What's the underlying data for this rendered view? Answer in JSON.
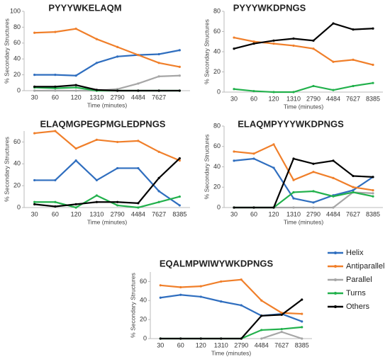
{
  "chart_data": [
    {
      "type": "line",
      "title": "PYYYWKELAQM",
      "ylabel": "% Secondary Structures",
      "xlabel": "Time (minutes)",
      "categories": [
        "30",
        "60",
        "120",
        "1310",
        "2790",
        "4484",
        "7627",
        null
      ],
      "ylim": [
        0,
        100
      ],
      "yticks": [
        0,
        20,
        40,
        60,
        80,
        100
      ],
      "series": [
        {
          "color": "#2f6ebf",
          "values": [
            20,
            20,
            19,
            35,
            43,
            45,
            46,
            51
          ]
        },
        {
          "color": "#f07f2a",
          "values": [
            73,
            74,
            78,
            65,
            55,
            45,
            35,
            30
          ]
        },
        {
          "color": "#a6a6a6",
          "values": [
            0,
            0,
            0,
            0,
            2,
            9,
            18,
            19
          ]
        },
        {
          "color": "#22b14c",
          "values": [
            4,
            3,
            4,
            0,
            0,
            0,
            0,
            0
          ]
        },
        {
          "color": "#000000",
          "values": [
            5,
            5,
            7,
            1,
            0,
            0,
            0,
            0
          ]
        }
      ]
    },
    {
      "type": "line",
      "title": "PYYYWKDPNGS",
      "ylabel": "% Secondary Structures",
      "xlabel": "Time (minutes)",
      "categories": [
        "30",
        "60",
        "120",
        "1310",
        "2790",
        "4484",
        "7627",
        "8385"
      ],
      "ylim": [
        0,
        80
      ],
      "yticks": [
        0,
        20,
        40,
        60,
        80
      ],
      "series": [
        {
          "color": "#f07f2a",
          "values": [
            54,
            50,
            48,
            46,
            43,
            30,
            32,
            27
          ]
        },
        {
          "color": "#22b14c",
          "values": [
            3,
            1,
            0,
            0,
            6,
            2,
            6,
            9
          ]
        },
        {
          "color": "#000000",
          "values": [
            43,
            48,
            51,
            53,
            51,
            68,
            62,
            63
          ]
        }
      ]
    },
    {
      "type": "line",
      "title": "ELAQMGPEGPMGLEDPNGS",
      "ylabel": "% Secondary Structures",
      "xlabel": "Time (minutes)",
      "categories": [
        "30",
        "60",
        "120",
        "1310",
        "2790",
        "4484",
        "7627",
        "8385"
      ],
      "ylim": [
        0,
        70
      ],
      "yticks": [
        0,
        20,
        40,
        60
      ],
      "series": [
        {
          "color": "#2f6ebf",
          "values": [
            25,
            25,
            43,
            25,
            36,
            36,
            15,
            2
          ]
        },
        {
          "color": "#f07f2a",
          "values": [
            68,
            70,
            54,
            62,
            60,
            61,
            51,
            43
          ]
        },
        {
          "color": "#22b14c",
          "values": [
            5,
            5,
            0,
            11,
            2,
            0,
            5,
            10
          ]
        },
        {
          "color": "#000000",
          "values": [
            3,
            1,
            3,
            5,
            5,
            4,
            27,
            45
          ]
        }
      ]
    },
    {
      "type": "line",
      "title": "ELAQMPYYYWKDPNGS",
      "ylabel": "% Secondary Structures",
      "xlabel": "Time (minutes)",
      "categories": [
        "30",
        "60",
        "120",
        "1310",
        "2790",
        "4484",
        "7627",
        "8385"
      ],
      "ylim": [
        0,
        80
      ],
      "yticks": [
        0,
        20,
        40,
        60,
        80
      ],
      "series": [
        {
          "color": "#2f6ebf",
          "values": [
            46,
            48,
            39,
            9,
            5,
            12,
            17,
            30
          ]
        },
        {
          "color": "#f07f2a",
          "values": [
            55,
            53,
            62,
            27,
            35,
            29,
            20,
            17
          ]
        },
        {
          "color": "#a6a6a6",
          "values": [
            0,
            0,
            0,
            0,
            0,
            0,
            15,
            14
          ]
        },
        {
          "color": "#22b14c",
          "values": [
            0,
            0,
            0,
            15,
            16,
            11,
            15,
            11
          ]
        },
        {
          "color": "#000000",
          "values": [
            0,
            0,
            0,
            48,
            43,
            46,
            31,
            30
          ]
        }
      ]
    },
    {
      "type": "line",
      "title": "EQALMPWIWYWKDPNGS",
      "ylabel": "% Secondary Structures",
      "xlabel": "Time (minutes)",
      "categories": [
        "30",
        "60",
        "120",
        "1310",
        "2790",
        "4484",
        "7627",
        "8385"
      ],
      "ylim": [
        0,
        70
      ],
      "yticks": [
        0,
        20,
        40,
        60
      ],
      "legend": "right",
      "series": [
        {
          "name": "Helix",
          "color": "#2f6ebf",
          "values": [
            43,
            46,
            44,
            39,
            35,
            24,
            26,
            18
          ]
        },
        {
          "name": "Antiparallel",
          "color": "#f07f2a",
          "values": [
            56,
            54,
            55,
            60,
            62,
            40,
            27,
            26
          ]
        },
        {
          "name": "Parallel",
          "color": "#a6a6a6",
          "values": [
            null,
            null,
            null,
            null,
            null,
            0,
            7,
            0
          ]
        },
        {
          "name": "Turns",
          "color": "#22b14c",
          "values": [
            0,
            0,
            0,
            0,
            0,
            9,
            10,
            12
          ]
        },
        {
          "name": "Others",
          "color": "#000000",
          "values": [
            0,
            0,
            0,
            0,
            0,
            24,
            25,
            41
          ]
        }
      ]
    }
  ]
}
